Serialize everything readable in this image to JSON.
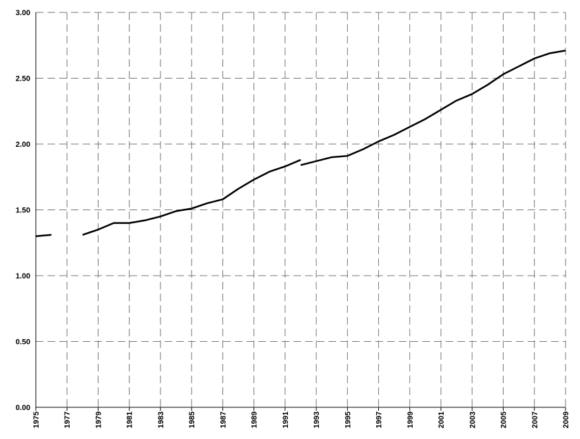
{
  "chart_data": {
    "type": "line",
    "x": [
      1975,
      1976,
      1977,
      1978,
      1979,
      1980,
      1981,
      1982,
      1983,
      1984,
      1985,
      1986,
      1987,
      1988,
      1989,
      1990,
      1991,
      1992,
      1992,
      1992,
      1993,
      1994,
      1995,
      1996,
      1997,
      1998,
      1999,
      2000,
      2001,
      2002,
      2003,
      2004,
      2005,
      2006,
      2007,
      2008,
      2009
    ],
    "values": [
      1.3,
      1.31,
      null,
      1.31,
      1.35,
      1.4,
      1.4,
      1.42,
      1.45,
      1.49,
      1.51,
      1.55,
      1.58,
      1.66,
      1.73,
      1.79,
      1.83,
      1.88,
      null,
      1.84,
      1.87,
      1.9,
      1.91,
      1.96,
      2.02,
      2.07,
      2.13,
      2.19,
      2.26,
      2.33,
      2.38,
      2.45,
      2.53,
      2.59,
      2.65,
      2.69,
      2.71
    ],
    "color": "#000000",
    "xlim": [
      1975,
      2009
    ],
    "xticks": [
      1975,
      1977,
      1979,
      1981,
      1983,
      1985,
      1987,
      1989,
      1991,
      1993,
      1995,
      1997,
      1999,
      2001,
      2003,
      2005,
      2007,
      2009
    ],
    "ylim": [
      0,
      3
    ],
    "yticks": [
      {
        "value": 0,
        "label": "0.00"
      },
      {
        "value": 0.5,
        "label": "0.50"
      },
      {
        "value": 1,
        "label": "1.00"
      },
      {
        "value": 1.5,
        "label": "1.50"
      },
      {
        "value": 2,
        "label": "2.00"
      },
      {
        "value": 2.5,
        "label": "2.50"
      },
      {
        "value": 3,
        "label": "3.00"
      }
    ],
    "grid": true
  }
}
